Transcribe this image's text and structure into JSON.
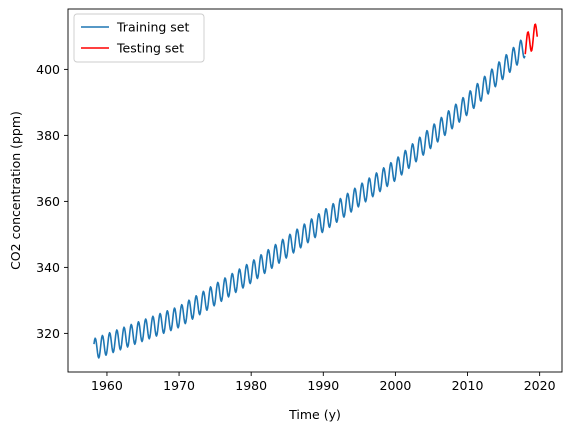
{
  "chart_data": {
    "type": "line",
    "xlabel": "Time (y)",
    "ylabel": "CO2 concentration (ppm)",
    "xlim": [
      1954.6,
      2023.1
    ],
    "ylim": [
      308.3,
      418.3
    ],
    "xticks": [
      1960,
      1970,
      1980,
      1990,
      2000,
      2010,
      2020
    ],
    "yticks": [
      320,
      340,
      360,
      380,
      400
    ],
    "grid": false,
    "legend_position": "upper left",
    "series": [
      {
        "name": "Training set",
        "color": "#1f77b4",
        "x_start": 1958.2,
        "x_end": 2018.0,
        "trend_points": [
          [
            1958.2,
            315.2
          ],
          [
            1970,
            325.0
          ],
          [
            1980,
            338.5
          ],
          [
            1990,
            354.0
          ],
          [
            2000,
            369.5
          ],
          [
            2010,
            389.5
          ],
          [
            2018.0,
            407.0
          ]
        ],
        "seasonal_amplitude": 3.2
      },
      {
        "name": "Testing set",
        "color": "#ff0000",
        "x_start": 2018.0,
        "x_end": 2019.7,
        "trend_points": [
          [
            2018.0,
            407.0
          ],
          [
            2019.7,
            411.0
          ]
        ],
        "seasonal_amplitude": 3.5
      }
    ]
  }
}
